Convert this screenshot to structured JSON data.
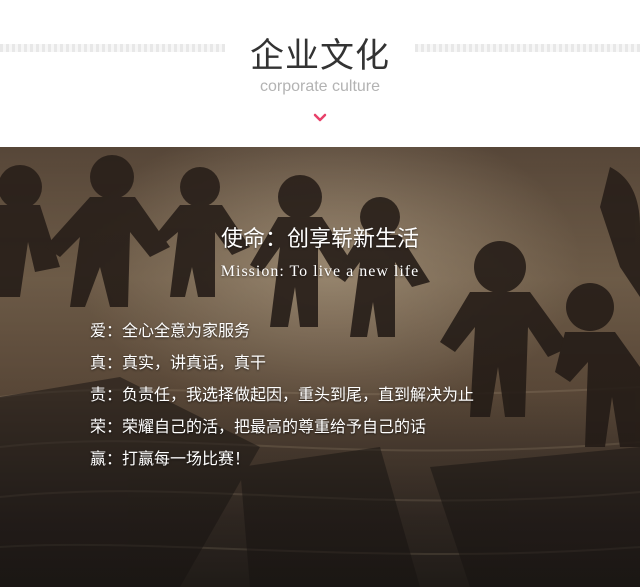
{
  "header": {
    "title_cn": "企业文化",
    "title_en": "corporate culture",
    "chevron_icon": "chevron-down-icon",
    "accent_color": "#e8416a"
  },
  "banner": {
    "mission_cn": "使命：创享崭新生活",
    "mission_en": "Mission: To live a new life",
    "values": [
      "爱：全心全意为家服务",
      "真：真实，讲真话，真干",
      "责：负责任，我选择做起因，重头到尾，直到解决为止",
      "荣：荣耀自己的活，把最高的尊重给予自己的话",
      "赢：打赢每一场比赛！"
    ]
  }
}
